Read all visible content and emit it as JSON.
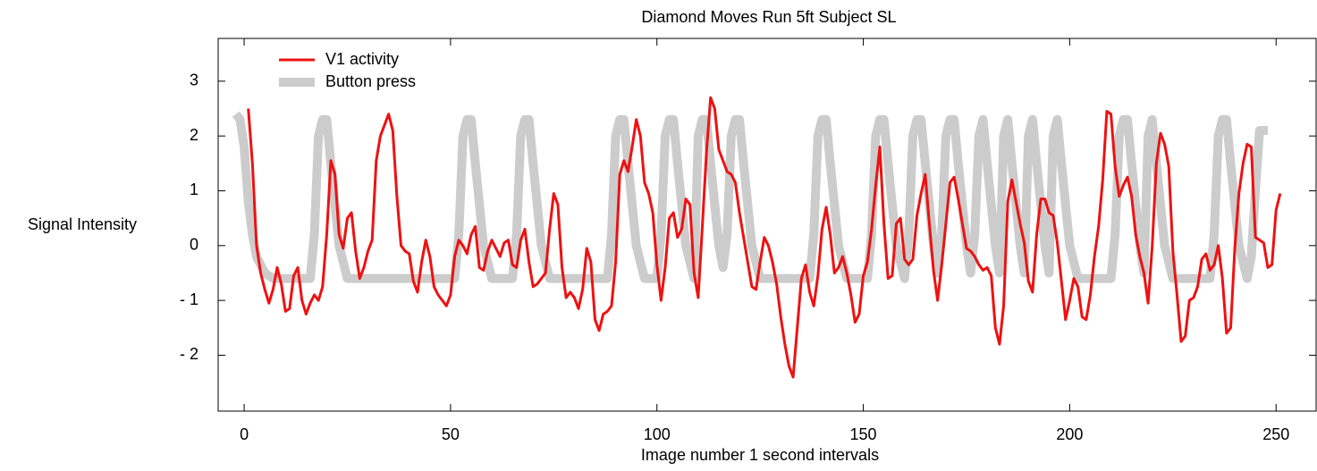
{
  "chart_data": {
    "type": "line",
    "title": "Diamond  Moves Run 5ft Subject  SL",
    "xlabel": "Image number   1 second intervals",
    "ylabel": "Signal  Intensity",
    "xlim": [
      -6.3,
      259.7
    ],
    "ylim": [
      -3.02,
      3.78
    ],
    "xticks": [
      0,
      50,
      100,
      150,
      200,
      250
    ],
    "yticks": [
      {
        "value": -2,
        "label": "- 2"
      },
      {
        "value": -1,
        "label": "- 1"
      },
      0,
      1,
      2,
      3
    ],
    "legend": "upper left",
    "series": [
      {
        "name": "V1 activity",
        "color": "#ee1111",
        "width": 3,
        "x": [
          1,
          2,
          3,
          4,
          5,
          6,
          7,
          8,
          9,
          10,
          11,
          12,
          13,
          14,
          15,
          16,
          17,
          18,
          19,
          20,
          21,
          22,
          23,
          24,
          25,
          26,
          27,
          28,
          29,
          30,
          31,
          32,
          33,
          34,
          35,
          36,
          37,
          38,
          39,
          40,
          41,
          42,
          43,
          44,
          45,
          46,
          47,
          48,
          49,
          50,
          51,
          52,
          53,
          54,
          55,
          56,
          57,
          58,
          59,
          60,
          61,
          62,
          63,
          64,
          65,
          66,
          67,
          68,
          69,
          70,
          71,
          72,
          73,
          74,
          75,
          76,
          77,
          78,
          79,
          80,
          81,
          82,
          83,
          84,
          85,
          86,
          87,
          88,
          89,
          90,
          91,
          92,
          93,
          94,
          95,
          96,
          97,
          98,
          99,
          100,
          101,
          102,
          103,
          104,
          105,
          106,
          107,
          108,
          109,
          110,
          111,
          112,
          113,
          114,
          115,
          116,
          117,
          118,
          119,
          120,
          121,
          122,
          123,
          124,
          125,
          126,
          127,
          128,
          129,
          130,
          131,
          132,
          133,
          134,
          135,
          136,
          137,
          138,
          139,
          140,
          141,
          142,
          143,
          144,
          145,
          146,
          147,
          148,
          149,
          150,
          151,
          152,
          153,
          154,
          155,
          156,
          157,
          158,
          159,
          160,
          161,
          162,
          163,
          164,
          165,
          166,
          167,
          168,
          169,
          170,
          171,
          172,
          173,
          174,
          175,
          176,
          177,
          178,
          179,
          180,
          181,
          182,
          183,
          184,
          185,
          186,
          187,
          188,
          189,
          190,
          191,
          192,
          193,
          194,
          195,
          196,
          197,
          198,
          199,
          200,
          201,
          202,
          203,
          204,
          205,
          206,
          207,
          208,
          209,
          210,
          211,
          212,
          213,
          214,
          215,
          216,
          217,
          218,
          219,
          220,
          221,
          222,
          223,
          224,
          225,
          226,
          227,
          228,
          229,
          230,
          231,
          232,
          233,
          234,
          235,
          236,
          237,
          238,
          239,
          240,
          241,
          242,
          243,
          244,
          245,
          246,
          247,
          248,
          249,
          250,
          251
        ],
        "values": [
          2.5,
          1.5,
          0.0,
          -0.5,
          -0.8,
          -1.05,
          -0.8,
          -0.4,
          -0.7,
          -1.2,
          -1.15,
          -0.55,
          -0.4,
          -1.0,
          -1.25,
          -1.05,
          -0.9,
          -1.0,
          -0.75,
          0.2,
          1.55,
          1.3,
          0.2,
          -0.05,
          0.5,
          0.6,
          -0.1,
          -0.6,
          -0.4,
          -0.1,
          0.1,
          1.55,
          2.0,
          2.2,
          2.4,
          2.1,
          0.9,
          0.0,
          -0.1,
          -0.15,
          -0.65,
          -0.85,
          -0.3,
          0.1,
          -0.2,
          -0.75,
          -0.9,
          -1.0,
          -1.1,
          -0.9,
          -0.2,
          0.1,
          0.0,
          -0.15,
          0.2,
          0.35,
          -0.4,
          -0.45,
          -0.1,
          0.1,
          -0.05,
          -0.2,
          0.05,
          0.1,
          -0.35,
          -0.4,
          0.1,
          0.3,
          -0.3,
          -0.75,
          -0.7,
          -0.6,
          -0.5,
          0.3,
          0.95,
          0.75,
          -0.4,
          -0.95,
          -0.85,
          -0.95,
          -1.15,
          -0.8,
          -0.05,
          -0.3,
          -1.35,
          -1.55,
          -1.25,
          -1.2,
          -1.1,
          -0.3,
          1.3,
          1.55,
          1.35,
          1.8,
          2.3,
          2.0,
          1.15,
          0.95,
          0.6,
          -0.35,
          -1.0,
          -0.4,
          0.5,
          0.6,
          0.15,
          0.3,
          0.85,
          0.75,
          -0.5,
          -0.95,
          0.35,
          1.7,
          2.7,
          2.5,
          1.75,
          1.55,
          1.35,
          1.3,
          1.15,
          0.6,
          0.15,
          -0.3,
          -0.75,
          -0.8,
          -0.3,
          0.15,
          0.0,
          -0.3,
          -0.7,
          -1.3,
          -1.8,
          -2.2,
          -2.4,
          -1.5,
          -0.6,
          -0.35,
          -0.85,
          -1.1,
          -0.55,
          0.3,
          0.7,
          0.2,
          -0.5,
          -0.4,
          -0.2,
          -0.5,
          -0.9,
          -1.4,
          -1.25,
          -0.55,
          -0.3,
          0.3,
          1.1,
          1.8,
          0.4,
          -0.6,
          -0.55,
          0.4,
          0.5,
          -0.25,
          -0.35,
          -0.25,
          0.55,
          0.95,
          1.3,
          0.4,
          -0.45,
          -1.0,
          -0.35,
          0.4,
          1.15,
          1.25,
          0.85,
          0.4,
          -0.05,
          -0.1,
          -0.2,
          -0.35,
          -0.45,
          -0.4,
          -0.55,
          -1.5,
          -1.8,
          -1.1,
          0.8,
          1.2,
          0.8,
          0.4,
          0.05,
          -0.65,
          -0.85,
          0.2,
          0.85,
          0.85,
          0.6,
          0.55,
          0.05,
          -0.65,
          -1.35,
          -1.0,
          -0.6,
          -0.75,
          -1.3,
          -1.35,
          -0.9,
          -0.2,
          0.35,
          1.2,
          2.45,
          2.4,
          1.45,
          0.9,
          1.1,
          1.25,
          0.9,
          0.2,
          -0.2,
          -0.5,
          -1.05,
          0.0,
          1.5,
          2.05,
          1.85,
          1.45,
          -0.1,
          -0.9,
          -1.75,
          -1.65,
          -1.0,
          -0.95,
          -0.75,
          -0.25,
          -0.15,
          -0.45,
          -0.35,
          0.0,
          -0.6,
          -1.6,
          -1.5,
          -0.05,
          0.95,
          1.5,
          1.85,
          1.8,
          0.15,
          0.1,
          0.05,
          -0.4,
          -0.35,
          0.65,
          0.95
        ]
      },
      {
        "name": "Button press",
        "color": "#cccccc",
        "width": 10,
        "x": [
          -2,
          -1,
          0,
          1,
          2,
          3,
          5,
          7,
          16,
          17,
          18,
          19,
          20,
          21,
          23,
          25,
          51,
          52,
          53,
          54,
          55,
          56,
          58,
          60,
          65,
          66,
          67,
          68,
          69,
          70,
          72,
          74,
          88,
          89,
          90,
          91,
          92,
          93,
          95,
          97,
          100,
          101,
          102,
          103,
          104,
          105,
          107,
          109,
          110,
          111,
          112,
          113,
          115,
          116,
          117,
          118,
          119,
          120,
          121,
          123,
          125,
          137,
          138,
          139,
          140,
          141,
          142,
          144,
          146,
          151,
          152,
          153,
          154,
          155,
          156,
          158,
          160,
          161,
          162,
          163,
          164,
          165,
          167,
          168,
          169,
          170,
          171,
          172,
          173,
          175,
          176,
          177,
          178,
          179,
          180,
          182,
          183,
          184,
          185,
          186,
          188,
          189,
          190,
          191,
          192,
          194,
          195,
          196,
          197,
          198,
          200,
          202,
          210,
          211,
          212,
          213,
          214,
          215,
          217,
          218,
          219,
          220,
          221,
          223,
          225,
          234,
          235,
          236,
          237,
          238,
          239,
          241,
          243,
          244,
          245,
          246,
          248
        ],
        "values": [
          2.4,
          2.3,
          1.8,
          0.8,
          0.2,
          -0.2,
          -0.5,
          -0.6,
          -0.6,
          0.2,
          2.0,
          2.3,
          2.3,
          1.5,
          0.0,
          -0.6,
          -0.6,
          0.2,
          2.0,
          2.3,
          2.3,
          1.5,
          0.0,
          -0.6,
          -0.6,
          0.2,
          2.0,
          2.3,
          2.3,
          1.5,
          0.0,
          -0.6,
          -0.6,
          0.2,
          2.0,
          2.3,
          2.3,
          1.5,
          0.0,
          -0.6,
          -0.6,
          0.2,
          2.0,
          2.3,
          2.3,
          1.5,
          0.0,
          -0.6,
          2.0,
          2.3,
          2.3,
          1.5,
          0.0,
          -0.4,
          0.2,
          2.0,
          2.3,
          2.3,
          1.5,
          0.0,
          -0.6,
          -0.6,
          0.2,
          2.0,
          2.3,
          2.3,
          1.5,
          0.0,
          -0.6,
          -0.6,
          0.2,
          2.0,
          2.3,
          2.3,
          1.5,
          0.0,
          -0.6,
          0.2,
          2.0,
          2.3,
          2.3,
          1.5,
          0.0,
          -0.5,
          0.2,
          2.0,
          2.3,
          2.3,
          1.5,
          0.0,
          -0.5,
          0.2,
          2.0,
          2.3,
          1.5,
          0.0,
          -0.5,
          2.0,
          2.3,
          1.5,
          0.0,
          -0.5,
          2.0,
          2.3,
          1.5,
          0.0,
          -0.5,
          2.0,
          2.3,
          1.5,
          0.0,
          -0.6,
          -0.6,
          0.2,
          2.0,
          2.3,
          2.3,
          1.5,
          0.0,
          -0.5,
          2.0,
          2.3,
          1.5,
          0.0,
          -0.6,
          -0.6,
          0.2,
          2.0,
          2.3,
          2.3,
          1.5,
          0.0,
          -0.6,
          -0.2,
          1.0,
          2.1,
          2.1
        ]
      }
    ]
  }
}
